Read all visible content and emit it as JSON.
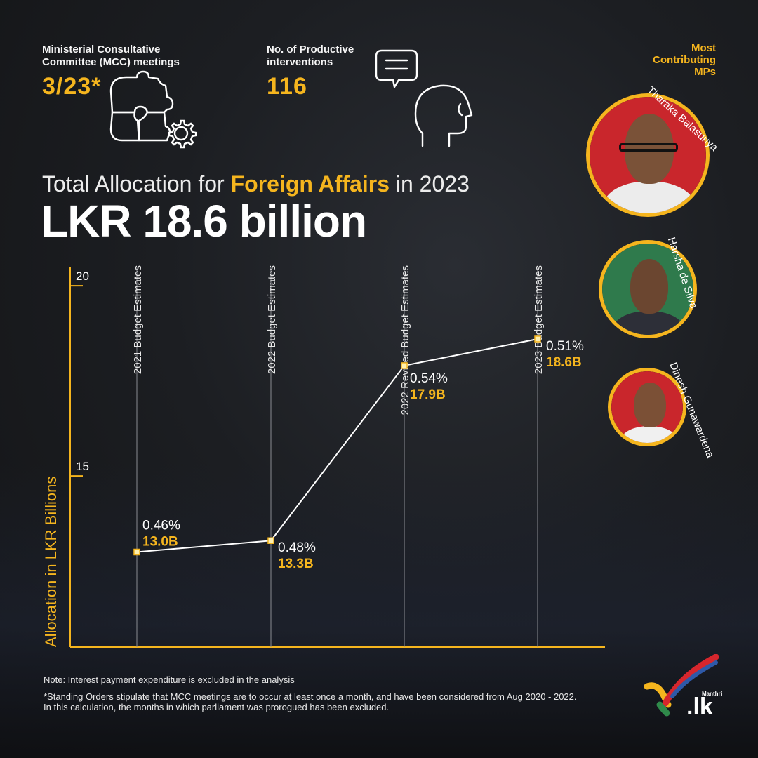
{
  "stats": {
    "mcc": {
      "label_1": "Ministerial Consultative",
      "label_2": "Committee (MCC) meetings",
      "value": "3/23*"
    },
    "interventions": {
      "label_1": "No. of Productive",
      "label_2": "interventions",
      "value": "116"
    }
  },
  "headline": {
    "pre": "Total Allocation for ",
    "highlight": "Foreign Affairs",
    "post": " in 2023"
  },
  "big_amount": "LKR 18.6 billion",
  "mps": {
    "title_1": "Most",
    "title_2": "Contributing",
    "title_3": "MPs",
    "names": [
      "Tharaka Balasuriya",
      "Harsha de Silva",
      "Dinesh Gunawardena"
    ]
  },
  "chart_data": {
    "type": "line",
    "ylabel": "Allocation in LKR Billions",
    "xlabel": "",
    "ylim": [
      10.5,
      20.5
    ],
    "y_ticks": [
      15,
      20
    ],
    "categories": [
      "2021 Budget Estimates",
      "2022 Budget Estimates",
      "2022 Revised Budget Estimates",
      "2023 Budget Estimates"
    ],
    "values": [
      13.0,
      13.3,
      17.9,
      18.6
    ],
    "value_labels": [
      "13.0B",
      "13.3B",
      "17.9B",
      "18.6B"
    ],
    "percent_labels": [
      "0.46%",
      "0.48%",
      "0.54%",
      "0.51%"
    ],
    "grid": true
  },
  "notes": {
    "line_1": "Note: Interest payment expenditure is excluded in the analysis",
    "line_2": "*Standing Orders stipulate that MCC meetings are to occur at least once a month, and have been considered from Aug 2020 - 2022.",
    "line_3": "In this calculation, the months in which parliament was prorogued has been excluded."
  },
  "logo": {
    "sub": "Manthri",
    "main": ".lk"
  },
  "colors": {
    "accent": "#f5b51e",
    "background": "#1c1e22",
    "line": "#ffffff"
  }
}
